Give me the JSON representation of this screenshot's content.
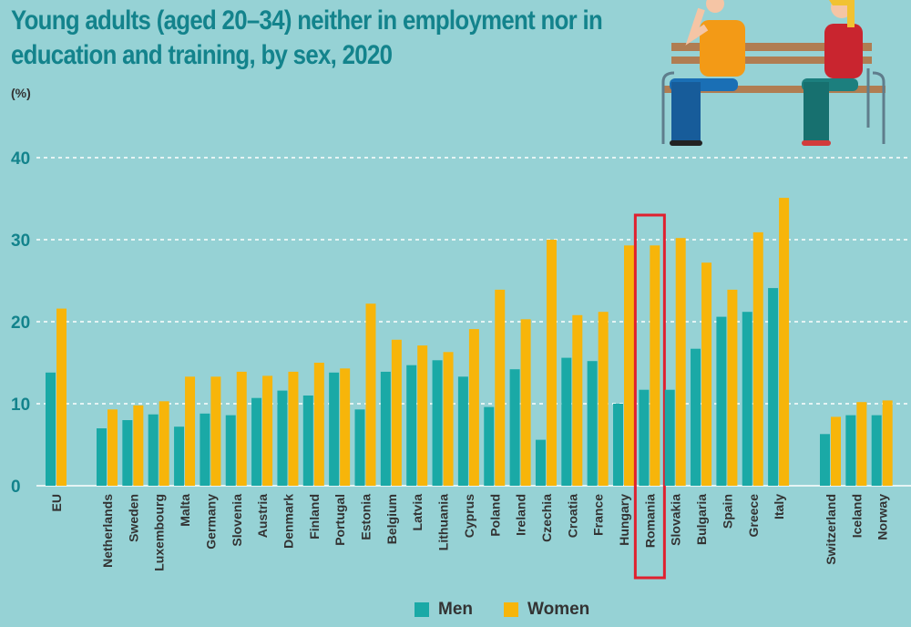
{
  "chart_data": {
    "type": "bar",
    "title": "Young adults (aged 20–34) neither in employment nor in education and training, by sex, 2020",
    "ylabel": "(%)",
    "ylim": [
      0,
      40
    ],
    "yticks": [
      "0",
      "10",
      "20",
      "30",
      "40"
    ],
    "grid": true,
    "legend_position": "bottom",
    "highlight": "Romania",
    "categories": [
      "EU",
      "Netherlands",
      "Sweden",
      "Luxembourg",
      "Malta",
      "Germany",
      "Slovenia",
      "Austria",
      "Denmark",
      "Finland",
      "Portugal",
      "Estonia",
      "Belgium",
      "Latvia",
      "Lithuania",
      "Cyprus",
      "Poland",
      "Ireland",
      "Czechia",
      "Croatia",
      "France",
      "Hungary",
      "Romania",
      "Slovakia",
      "Bulgaria",
      "Spain",
      "Greece",
      "Italy",
      "Switzerland",
      "Iceland",
      "Norway"
    ],
    "series": [
      {
        "name": "Men",
        "color": "#1aa9a6",
        "values": [
          13.8,
          7.0,
          8.0,
          8.7,
          7.2,
          8.8,
          8.6,
          10.7,
          11.6,
          11.0,
          13.8,
          9.3,
          13.9,
          14.7,
          15.3,
          13.3,
          9.6,
          14.2,
          5.6,
          15.6,
          15.2,
          10.0,
          11.7,
          11.7,
          16.7,
          20.6,
          21.2,
          24.1,
          6.3,
          8.6,
          8.6
        ]
      },
      {
        "name": "Women",
        "color": "#f7b50a",
        "values": [
          21.6,
          9.3,
          9.8,
          10.3,
          13.3,
          13.3,
          13.9,
          13.4,
          13.9,
          15.0,
          14.3,
          22.2,
          17.8,
          17.1,
          16.3,
          19.1,
          23.9,
          20.3,
          30.0,
          20.8,
          21.2,
          29.3,
          29.3,
          30.2,
          27.2,
          23.9,
          30.9,
          35.1,
          8.4,
          10.2,
          10.4
        ]
      }
    ]
  },
  "colors": {
    "background": "#96d2d5",
    "title": "#13838c",
    "highlight_box": "#e0202e"
  },
  "illustration": "two-people-on-bench"
}
